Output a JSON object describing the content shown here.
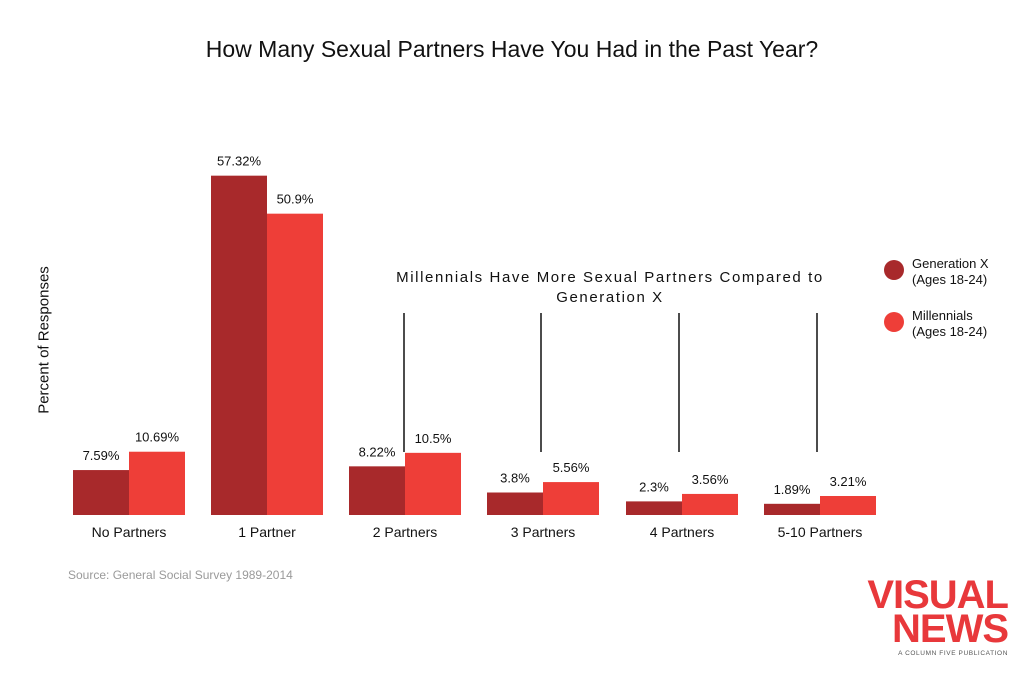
{
  "chart_data": {
    "type": "bar",
    "title": "How Many Sexual Partners Have You Had in the Past Year?",
    "ylabel": "Percent of Responses",
    "xlabel": "",
    "categories": [
      "No Partners",
      "1 Partner",
      "2 Partners",
      "3 Partners",
      "4 Partners",
      "5-10 Partners"
    ],
    "series": [
      {
        "name": "Generation X (Ages 18-24)",
        "values": [
          7.59,
          57.32,
          8.22,
          3.8,
          2.3,
          1.89
        ],
        "labels": [
          "7.59%",
          "57.32%",
          "8.22%",
          "3.8%",
          "2.3%",
          "1.89%"
        ],
        "color": "#a8292b"
      },
      {
        "name": "Millennials (Ages 18-24)",
        "values": [
          10.69,
          50.9,
          10.5,
          5.56,
          3.56,
          3.21
        ],
        "labels": [
          "10.69%",
          "50.9%",
          "10.5%",
          "5.56%",
          "3.56%",
          "3.21%"
        ],
        "color": "#ee3e38"
      }
    ],
    "annotation": "Millennials Have More Sexual Partners Compared to Generation X",
    "ylim": [
      0,
      60
    ],
    "grid": false,
    "legend_position": "right"
  },
  "legend": [
    {
      "line1": "Generation X",
      "line2": "(Ages 18-24)",
      "color": "#a8292b"
    },
    {
      "line1": "Millennials",
      "line2": "(Ages 18-24)",
      "color": "#ee3e38"
    }
  ],
  "source": "Source: General Social Survey 1989-2014",
  "logo": {
    "line1": "VISUAL",
    "line2": "NEWS",
    "tagline": "A COLUMN FIVE PUBLICATION"
  }
}
